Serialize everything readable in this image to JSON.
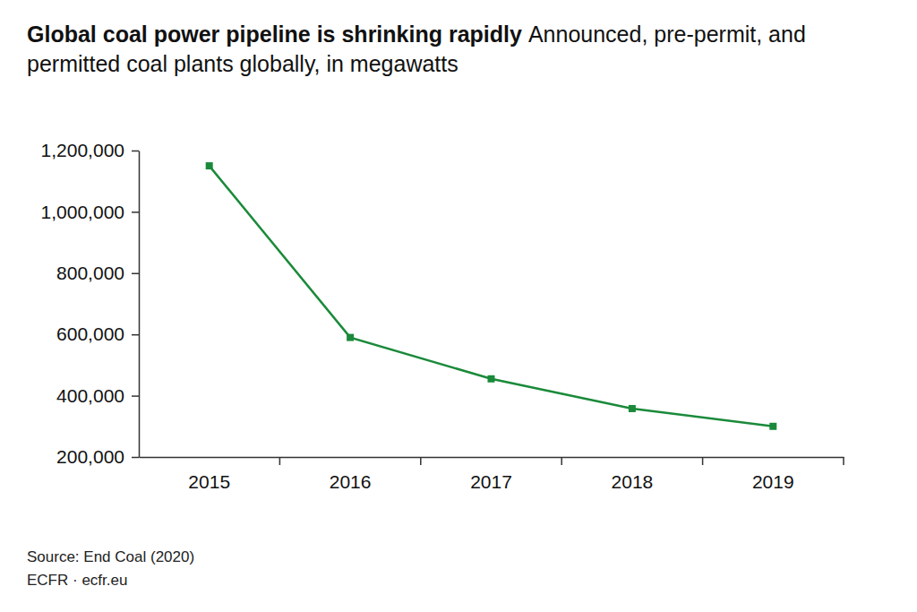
{
  "chart_data": {
    "type": "line",
    "title": "Global coal power pipeline is shrinking rapidly",
    "subtitle": "Announced, pre-permit, and permitted coal plants globally, in megawatts",
    "categories": [
      "2015",
      "2016",
      "2017",
      "2018",
      "2019"
    ],
    "values": [
      1150000,
      590000,
      455000,
      358000,
      300000
    ],
    "color": "#1a8a3a",
    "marker": "square",
    "ylim": [
      200000,
      1200000
    ],
    "yticks": [
      {
        "value": 200000,
        "label": "200,000"
      },
      {
        "value": 400000,
        "label": "400,000"
      },
      {
        "value": 600000,
        "label": "600,000"
      },
      {
        "value": 800000,
        "label": "800,000"
      },
      {
        "value": 1000000,
        "label": "1,000,000"
      },
      {
        "value": 1200000,
        "label": "1,200,000"
      }
    ],
    "grid": false,
    "source": "Source: End Coal (2020)",
    "credit": "ECFR · ecfr.eu"
  }
}
